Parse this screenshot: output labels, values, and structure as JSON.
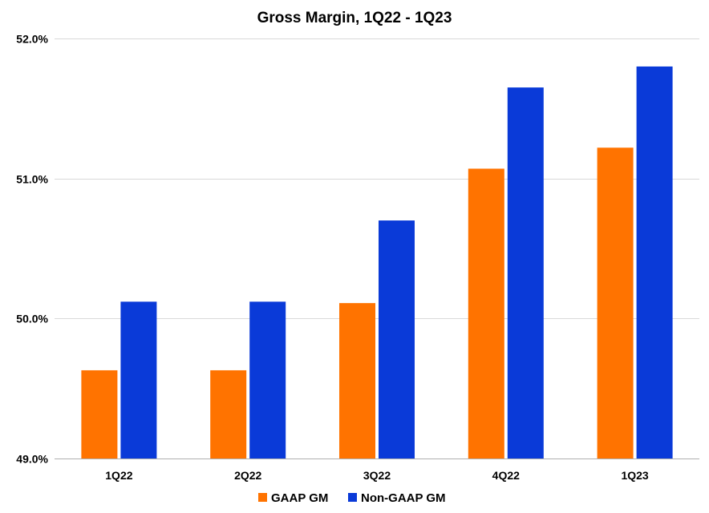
{
  "chart_data": {
    "type": "bar",
    "title": "Gross Margin, 1Q22 - 1Q23",
    "xlabel": "",
    "ylabel": "",
    "categories": [
      "1Q22",
      "2Q22",
      "3Q22",
      "4Q22",
      "1Q23"
    ],
    "series": [
      {
        "name": "GAAP GM",
        "color": "#ff7300",
        "values": [
          49.63,
          49.63,
          50.11,
          51.07,
          51.22
        ]
      },
      {
        "name": "Non-GAAP GM",
        "color": "#0a3ad8",
        "values": [
          50.12,
          50.12,
          50.7,
          51.65,
          51.8
        ]
      }
    ],
    "ylim": [
      49.0,
      52.0
    ],
    "yticks": [
      49.0,
      50.0,
      51.0,
      52.0
    ],
    "ytick_labels": [
      "49.0%",
      "50.0%",
      "51.0%",
      "52.0%"
    ],
    "grid": true,
    "legend_position": "bottom"
  }
}
